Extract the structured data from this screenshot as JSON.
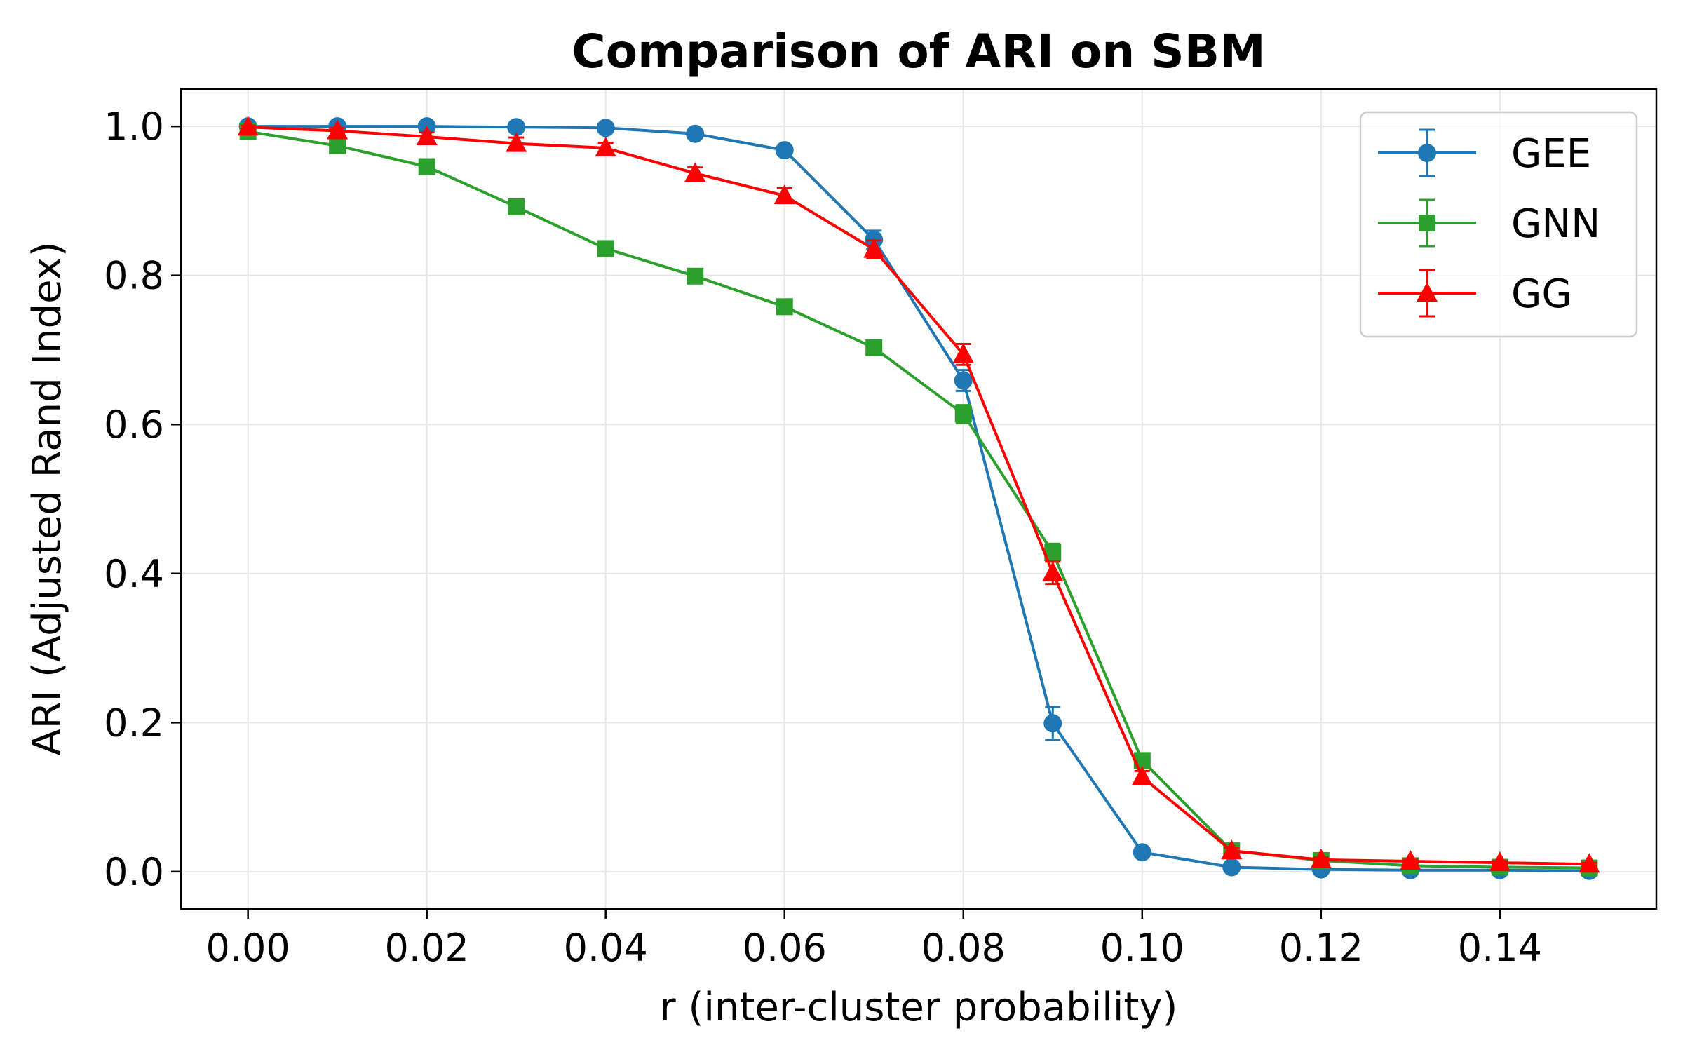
{
  "chart_data": {
    "type": "line",
    "title": "Comparison of ARI on SBM",
    "xlabel": "r (inter-cluster probability)",
    "ylabel": "ARI (Adjusted Rand Index)",
    "xlim": [
      -0.0075,
      0.1575
    ],
    "ylim": [
      -0.05,
      1.05
    ],
    "xticks": [
      0.0,
      0.02,
      0.04,
      0.06,
      0.08,
      0.1,
      0.12,
      0.14
    ],
    "xtick_labels": [
      "0.00",
      "0.02",
      "0.04",
      "0.06",
      "0.08",
      "0.10",
      "0.12",
      "0.14"
    ],
    "yticks": [
      0.0,
      0.2,
      0.4,
      0.6,
      0.8,
      1.0
    ],
    "ytick_labels": [
      "0.0",
      "0.2",
      "0.4",
      "0.6",
      "0.8",
      "1.0"
    ],
    "grid": true,
    "legend_position": "upper right",
    "x": [
      0.0,
      0.01,
      0.02,
      0.03,
      0.04,
      0.05,
      0.06,
      0.07,
      0.08,
      0.09,
      0.1,
      0.11,
      0.12,
      0.13,
      0.14,
      0.15
    ],
    "series": [
      {
        "name": "GEE",
        "color": "#1f77b4",
        "marker": "circle",
        "values": [
          1.0,
          1.0,
          1.0,
          0.999,
          0.998,
          0.99,
          0.968,
          0.848,
          0.659,
          0.199,
          0.026,
          0.006,
          0.003,
          0.002,
          0.002,
          0.001
        ],
        "errors": [
          0.0,
          0.0,
          0.0,
          0.001,
          0.002,
          0.003,
          0.004,
          0.012,
          0.014,
          0.022,
          0.004,
          0.002,
          0.001,
          0.001,
          0.001,
          0.001
        ]
      },
      {
        "name": "GNN",
        "color": "#2ca02c",
        "marker": "square",
        "values": [
          0.993,
          0.974,
          0.946,
          0.892,
          0.836,
          0.799,
          0.758,
          0.703,
          0.614,
          0.428,
          0.149,
          0.028,
          0.015,
          0.008,
          0.006,
          0.005
        ],
        "errors": [
          0.004,
          0.006,
          0.008,
          0.008,
          0.007,
          0.007,
          0.008,
          0.008,
          0.012,
          0.012,
          0.01,
          0.004,
          0.003,
          0.002,
          0.002,
          0.002
        ]
      },
      {
        "name": "GG",
        "color": "#ff0000",
        "marker": "triangle",
        "values": [
          0.999,
          0.994,
          0.986,
          0.977,
          0.971,
          0.937,
          0.907,
          0.835,
          0.694,
          0.401,
          0.127,
          0.028,
          0.016,
          0.014,
          0.012,
          0.01
        ],
        "errors": [
          0.002,
          0.004,
          0.006,
          0.008,
          0.007,
          0.008,
          0.01,
          0.012,
          0.014,
          0.015,
          0.008,
          0.004,
          0.003,
          0.002,
          0.002,
          0.002
        ]
      }
    ]
  }
}
